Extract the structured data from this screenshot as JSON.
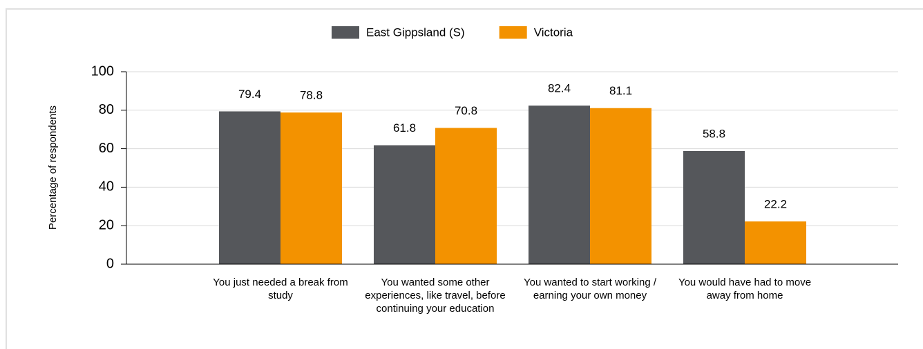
{
  "chart_data": {
    "type": "bar",
    "y_label": "Percentage of respondents",
    "categories": [
      "You just needed a break from study",
      "You wanted some other experiences, like travel, before continuing your education",
      "You wanted to start working / earning your own money",
      "You would have had to move away from home"
    ],
    "series": [
      {
        "name": "East Gippsland (S)",
        "color": "#55575b",
        "values": [
          79.4,
          61.8,
          82.4,
          58.8
        ]
      },
      {
        "name": "Victoria",
        "color": "#f39200",
        "values": [
          78.8,
          70.8,
          81.1,
          22.2
        ]
      }
    ],
    "ylim": [
      0,
      100
    ],
    "yticks": [
      0,
      20,
      40,
      60,
      80,
      100
    ],
    "grid": true
  }
}
